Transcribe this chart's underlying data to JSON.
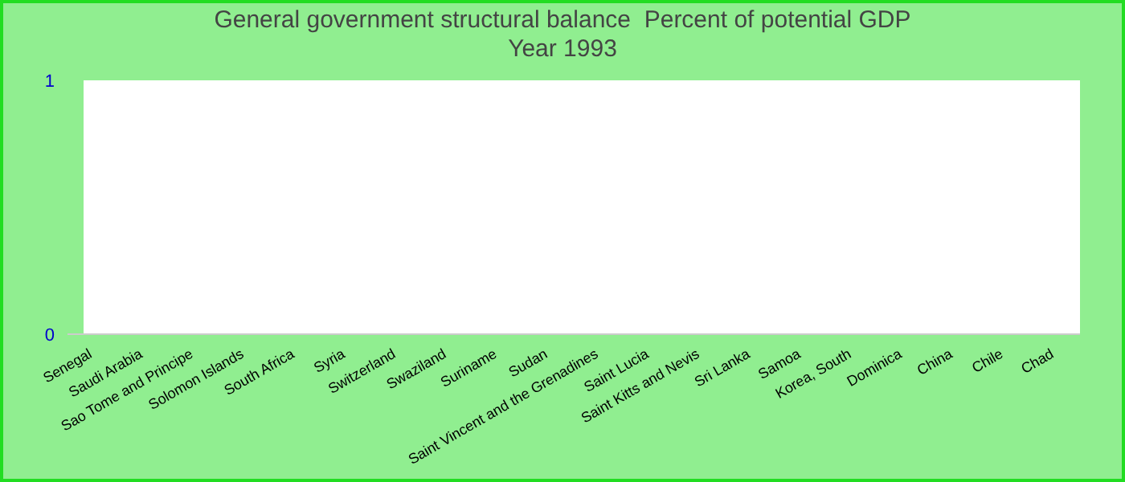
{
  "chart_data": {
    "type": "bar",
    "title": "General government structural balance  Percent of potential GDP",
    "subtitle": "Year 1993",
    "categories": [
      "Senegal",
      "Saudi Arabia",
      "Sao Tome and Principe",
      "Solomon Islands",
      "South Africa",
      "Syria",
      "Switzerland",
      "Swaziland",
      "Suriname",
      "Sudan",
      "Saint Vincent and the Grenadines",
      "Saint Lucia",
      "Saint Kitts and Nevis",
      "Sri Lanka",
      "Samoa",
      "Korea, South",
      "Dominica",
      "China",
      "Chile",
      "Chad"
    ],
    "values": [
      null,
      null,
      null,
      null,
      null,
      null,
      null,
      null,
      null,
      null,
      null,
      null,
      null,
      null,
      null,
      null,
      null,
      null,
      null,
      null
    ],
    "ylim": [
      0,
      1
    ],
    "yticks": [
      0,
      1
    ],
    "grid": false,
    "legend": false
  }
}
